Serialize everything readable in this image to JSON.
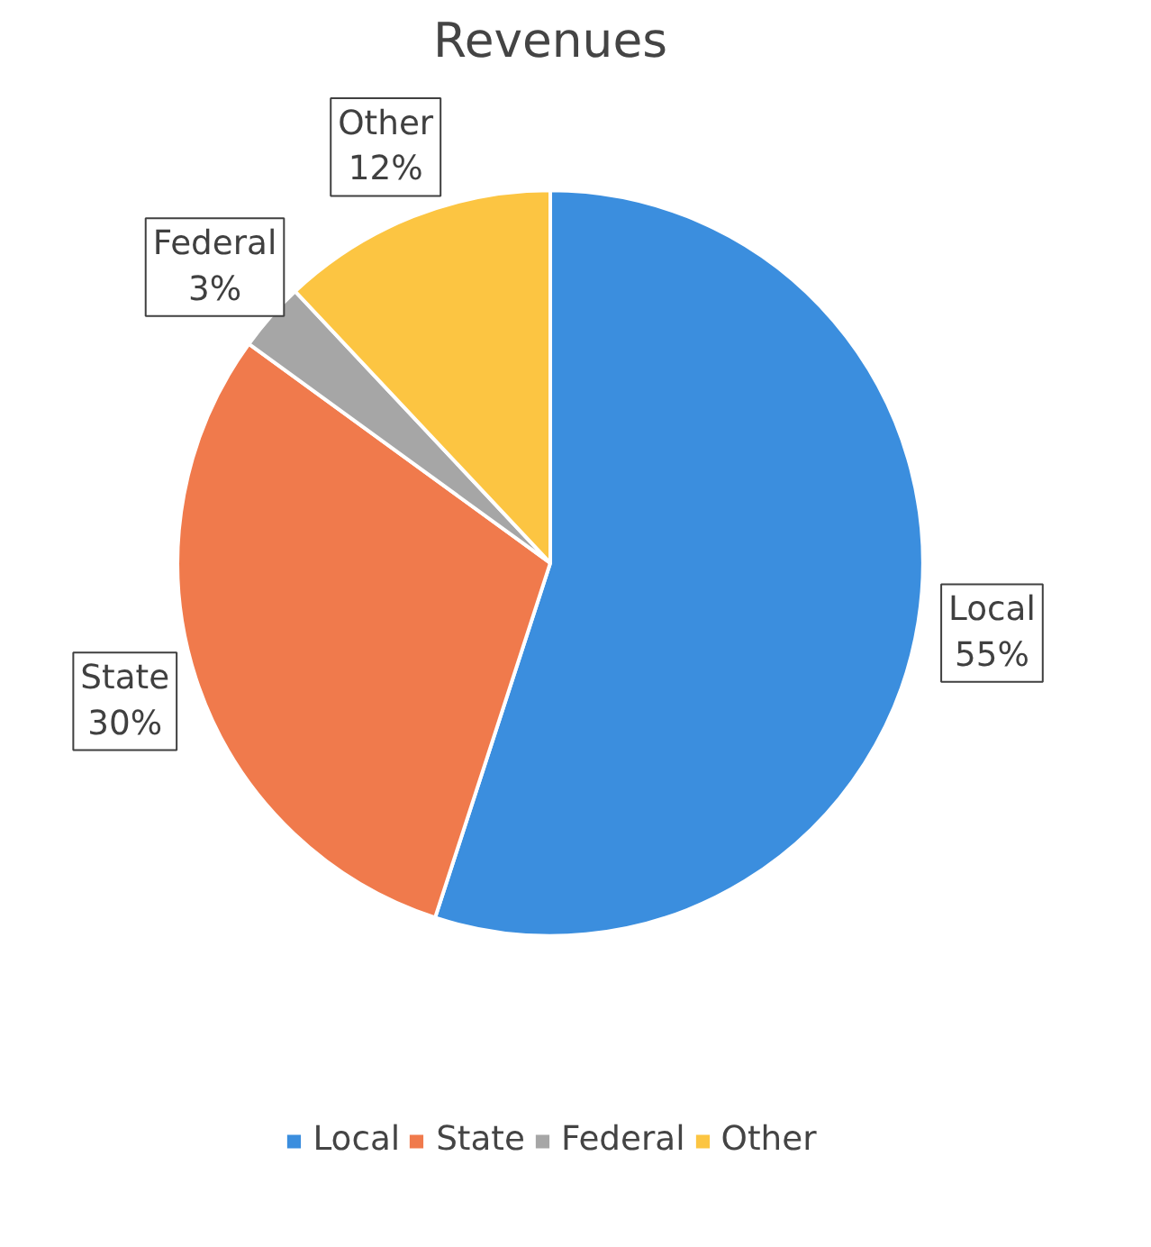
{
  "chart_data": {
    "type": "pie",
    "title": "Revenues",
    "categories": [
      "Local",
      "State",
      "Federal",
      "Other"
    ],
    "values": [
      55,
      30,
      3,
      12
    ],
    "colors": [
      "#3b8ede",
      "#f07a4c",
      "#a6a6a6",
      "#fcc542"
    ],
    "value_labels": [
      "55%",
      "30%",
      "3%",
      "12%"
    ],
    "legend": "bottom"
  }
}
